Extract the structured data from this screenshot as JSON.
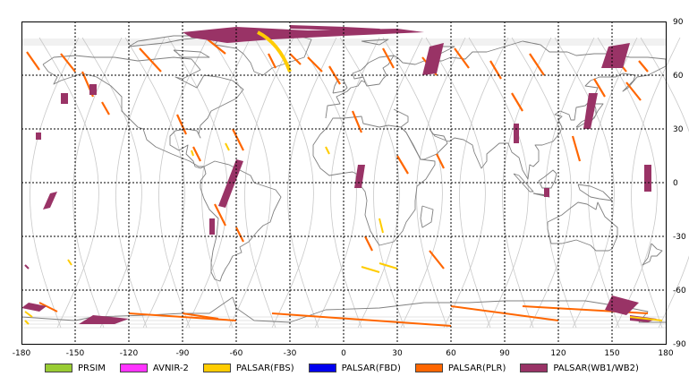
{
  "map": {
    "lon_ticks": [
      "-180",
      "-150",
      "-120",
      "-90",
      "-60",
      "-30",
      "0",
      "30",
      "60",
      "90",
      "120",
      "150",
      "180"
    ],
    "lat_ticks": [
      "90",
      "60",
      "30",
      "0",
      "-30",
      "-60",
      "-90"
    ],
    "lon_range": [
      -180,
      180
    ],
    "lat_range": [
      -90,
      90
    ],
    "grid": true,
    "projection": "equirectangular"
  },
  "legend": [
    {
      "label": "PRSIM",
      "color": "#99cc33"
    },
    {
      "label": "AVNIR-2",
      "color": "#ff33ff"
    },
    {
      "label": "PALSAR(FBS)",
      "color": "#ffcc00"
    },
    {
      "label": "PALSAR(FBD)",
      "color": "#0000ee"
    },
    {
      "label": "PALSAR(PLR)",
      "color": "#ff6600"
    },
    {
      "label": "PALSAR(WB1/WB2)",
      "color": "#993366"
    }
  ],
  "colors": {
    "frame": "#000000",
    "grid": "#000000",
    "orbit": "#c8c8c8",
    "coast": "#808080",
    "background": "#ffffff"
  }
}
